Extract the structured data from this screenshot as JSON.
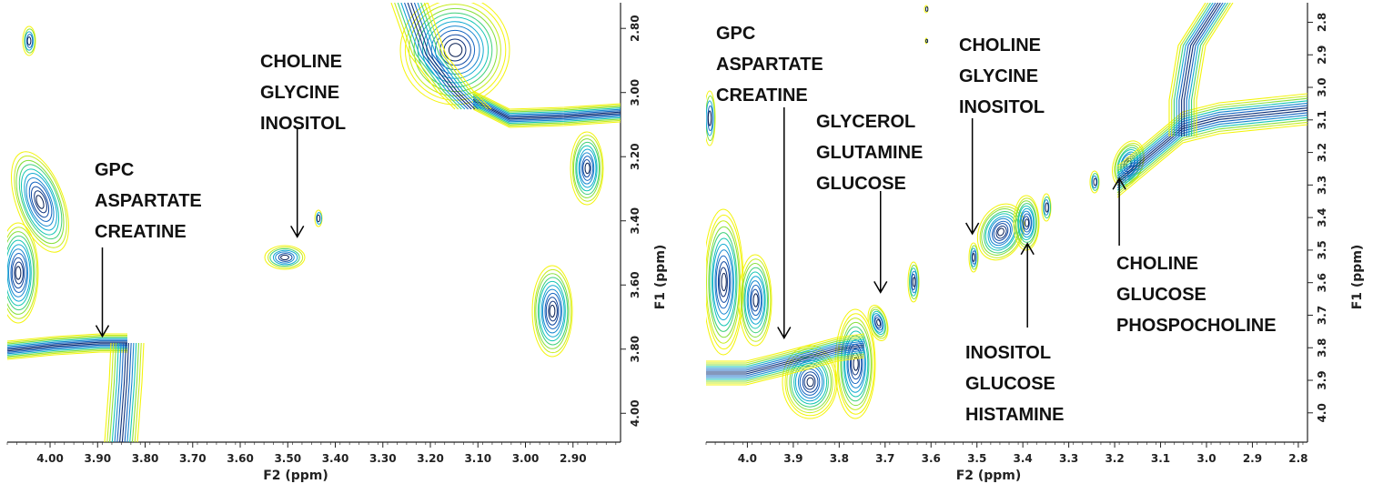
{
  "chart_data": [
    {
      "type": "contour",
      "xlabel": "F2 (ppm)",
      "ylabel": "F1 (ppm)",
      "xlim": [
        4.09,
        2.8
      ],
      "ylim": [
        2.72,
        4.09
      ],
      "x_ticks": [
        "4.00",
        "3.90",
        "3.80",
        "3.70",
        "3.60",
        "3.50",
        "3.40",
        "3.30",
        "3.20",
        "3.10",
        "3.00",
        "2.90"
      ],
      "y_ticks": [
        "2.80",
        "3.00",
        "3.20",
        "3.40",
        "3.60",
        "3.80",
        "4.00"
      ],
      "annotations": [
        {
          "lines": [
            "GPC",
            "ASPARTATE",
            "CREATINE"
          ],
          "arrow_to": [
            3.89,
            3.76
          ]
        },
        {
          "lines": [
            "CHOLINE",
            "GLYCINE",
            "INOSITOL"
          ],
          "arrow_to": [
            3.48,
            3.45
          ]
        }
      ]
    },
    {
      "type": "contour",
      "xlabel": "F2 (ppm)",
      "ylabel": "F1 (ppm)",
      "xlim": [
        4.09,
        2.78
      ],
      "ylim": [
        2.74,
        4.09
      ],
      "x_ticks": [
        "4.0",
        "3.9",
        "3.8",
        "3.7",
        "3.6",
        "3.5",
        "3.4",
        "3.3",
        "3.2",
        "3.1",
        "3.0",
        "2.9",
        "2.8"
      ],
      "y_ticks": [
        "2.8",
        "2.9",
        "3.0",
        "3.1",
        "3.2",
        "3.3",
        "3.4",
        "3.5",
        "3.6",
        "3.7",
        "3.8",
        "3.9",
        "4.0"
      ],
      "annotations": [
        {
          "lines": [
            "GPC",
            "ASPARTATE",
            "CREATINE"
          ],
          "arrow_to": [
            3.92,
            3.77
          ]
        },
        {
          "lines": [
            "GLYCEROL",
            "GLUTAMINE",
            "GLUCOSE"
          ],
          "arrow_to": [
            3.71,
            3.63
          ]
        },
        {
          "lines": [
            "CHOLINE",
            "GLYCINE",
            "INOSITOL"
          ],
          "arrow_to": [
            3.51,
            3.45
          ]
        },
        {
          "lines": [
            "INOSITOL",
            "GLUCOSE",
            "HISTAMINE"
          ],
          "arrow_to": [
            3.39,
            3.48
          ]
        },
        {
          "lines": [
            "CHOLINE",
            "GLUCOSE",
            "PHOSPOCHOLINE"
          ],
          "arrow_to": [
            3.19,
            3.28
          ]
        }
      ]
    }
  ]
}
